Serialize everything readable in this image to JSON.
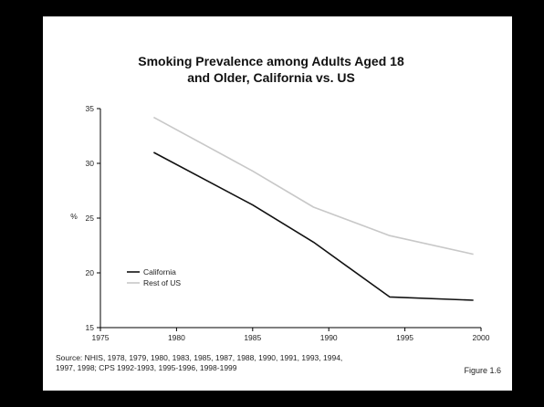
{
  "chart_data": {
    "type": "line",
    "title_line1": "Smoking Prevalence among Adults Aged 18",
    "title_line2": "and Older, California vs. US",
    "ylabel": "%",
    "xlim": [
      1975,
      2000
    ],
    "ylim": [
      15,
      35
    ],
    "x_ticks": [
      1975,
      1980,
      1985,
      1990,
      1995,
      2000
    ],
    "y_ticks": [
      15,
      20,
      25,
      30,
      35
    ],
    "legend_position": "lower-left",
    "grid": false,
    "series": [
      {
        "name": "California",
        "color": "#111111",
        "points": [
          {
            "x": 1978.5,
            "y": 31.0
          },
          {
            "x": 1985,
            "y": 26.2
          },
          {
            "x": 1989,
            "y": 22.8
          },
          {
            "x": 1994,
            "y": 17.8
          },
          {
            "x": 1999.5,
            "y": 17.5
          }
        ]
      },
      {
        "name": "Rest of US",
        "color": "#c8c8c8",
        "points": [
          {
            "x": 1978.5,
            "y": 34.2
          },
          {
            "x": 1985,
            "y": 29.3
          },
          {
            "x": 1989,
            "y": 26.0
          },
          {
            "x": 1994,
            "y": 23.4
          },
          {
            "x": 1999.5,
            "y": 21.7
          }
        ]
      }
    ]
  },
  "source_text": "Source: NHIS, 1978, 1979, 1980, 1983, 1985, 1987, 1988, 1990, 1991, 1993, 1994,\n1997, 1998; CPS 1992-1993, 1995-1996, 1998-1999",
  "figure_label": "Figure 1.6"
}
